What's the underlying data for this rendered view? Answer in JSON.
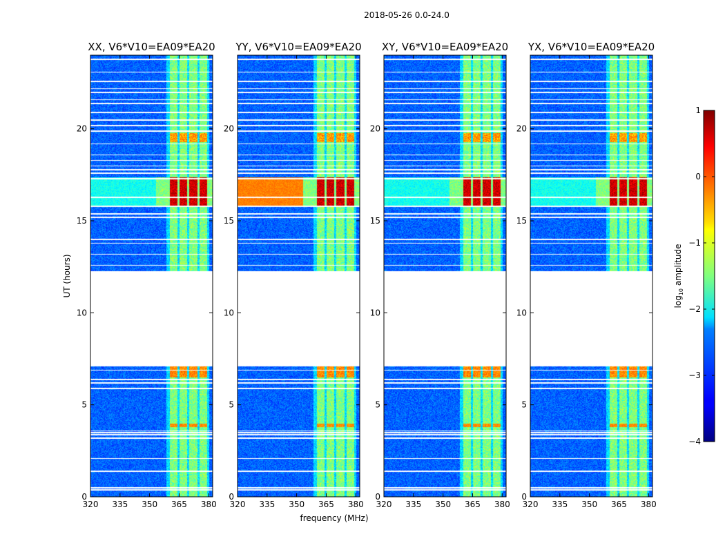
{
  "figure_title": "2018-05-26 0.0-24.0",
  "chart_data": {
    "type": "heatmap",
    "title": "2018-05-26 0.0-24.0",
    "xlabel": "frequency (MHz)",
    "ylabel": "UT (hours)",
    "xlim": [
      320,
      382
    ],
    "ylim": [
      0,
      24
    ],
    "xticks": [
      320,
      335,
      350,
      365,
      380
    ],
    "yticks": [
      0,
      5,
      10,
      15,
      20
    ],
    "colorbar": {
      "label": "log10 amplitude",
      "label_main": "log",
      "label_sub": "10",
      "label_rest": " amplitude",
      "range": [
        -4,
        1
      ],
      "ticks": [
        -4,
        -3,
        -2,
        -1,
        0,
        1
      ],
      "colormap": "jet"
    },
    "data_gap_hours": [
      7.1,
      12.3
    ],
    "flagged_rows_hours": [
      0.4,
      0.5,
      1.4,
      2.1,
      3.2,
      3.4,
      3.5,
      3.6,
      5.9,
      6.2,
      6.4,
      6.9,
      12.6,
      13.2,
      13.8,
      14.0,
      15.2,
      15.4,
      15.8,
      16.3,
      17.3,
      17.6,
      17.8,
      18.0,
      18.3,
      18.6,
      19.2,
      19.9,
      20.2,
      20.5,
      20.9,
      21.4,
      21.6,
      22.0,
      22.2,
      22.6,
      23.1,
      23.8
    ],
    "rfi_bands_mhz": [
      [
        360,
        364
      ],
      [
        365,
        369
      ],
      [
        370,
        374
      ],
      [
        375,
        379
      ]
    ],
    "strong_rfi_hours": [
      15.8,
      17.4
    ],
    "panels": [
      {
        "id": "xx",
        "title": "XX, V6*V10=EA09*EA20",
        "polarization": "XX"
      },
      {
        "id": "yy",
        "title": "YY, V6*V10=EA09*EA20",
        "polarization": "YY"
      },
      {
        "id": "xy",
        "title": "XY, V6*V10=EA09*EA20",
        "polarization": "XY"
      },
      {
        "id": "yx",
        "title": "YX, V6*V10=EA09*EA20",
        "polarization": "YX"
      }
    ]
  }
}
